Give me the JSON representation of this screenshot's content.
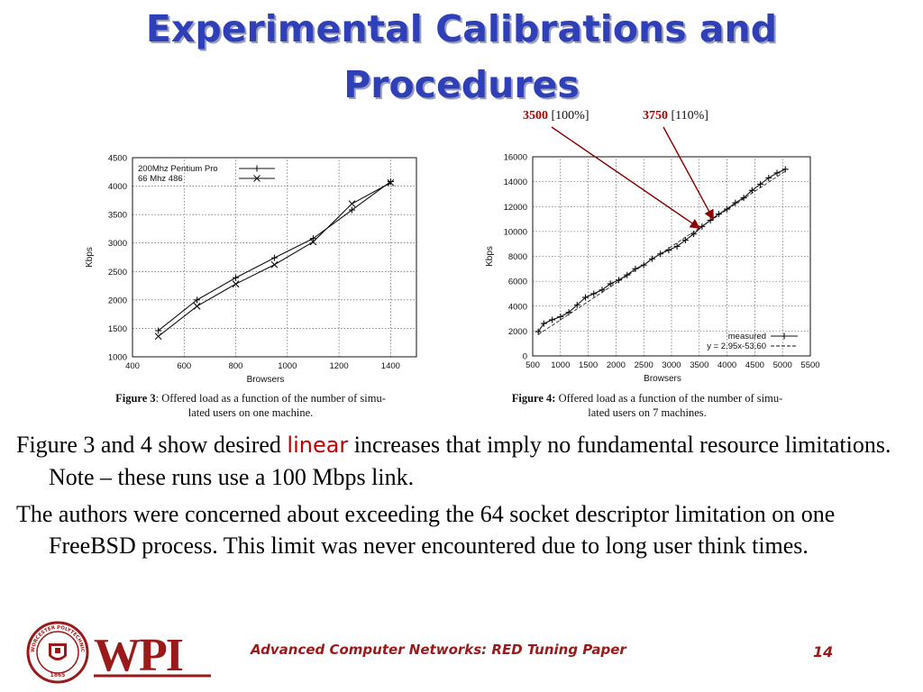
{
  "slide": {
    "title_line1": "Experimental Calibrations and",
    "title_line2": "Procedures",
    "title_color": "#2f3fb8"
  },
  "annotations": [
    {
      "value": "3500",
      "pct": "[100%]"
    },
    {
      "value": "3750",
      "pct": "[110%]"
    }
  ],
  "figures": [
    {
      "label": "Figure 3",
      "caption_rest": ": Offered load as a function of the number of simu-",
      "caption_line2": "lated users on one machine."
    },
    {
      "label": "Figure 4:",
      "caption_rest": " Offered load as a function of the number of simu-",
      "caption_line2": "lated users on 7 machines."
    }
  ],
  "body": {
    "p1_before": "Figure 3 and 4 show desired ",
    "p1_emph": "linear",
    "p1_after": " increases that imply no fundamental resource limitations. Note – these runs use a 100 Mbps link.",
    "p2": "The authors were concerned about exceeding the 64 socket descriptor limitation on one FreeBSD process.  This limit was never encountered due to long user think times."
  },
  "logo": {
    "text": "WPI",
    "seal_text": "WORCESTER POLYTECHNIC INSTITUTE",
    "year": "1865",
    "color": "#9a1a1a"
  },
  "footer": {
    "text": "Advanced Computer Networks:  RED Tuning Paper",
    "page": "14",
    "color": "#9a1a1a"
  },
  "chart_data": [
    {
      "type": "line",
      "xlabel": "Browsers",
      "ylabel": "Kbps",
      "xlim": [
        400,
        1500
      ],
      "ylim": [
        1000,
        4500
      ],
      "xticks": [
        400,
        600,
        800,
        1000,
        1200,
        1400
      ],
      "yticks": [
        1000,
        1500,
        2000,
        2500,
        3000,
        3500,
        4000,
        4500
      ],
      "grid": true,
      "legend": "top-left",
      "series": [
        {
          "name": "200Mhz Pentium Pro",
          "marker": "+",
          "x": [
            500,
            650,
            800,
            950,
            1100,
            1250,
            1400
          ],
          "y": [
            1460,
            2000,
            2390,
            2740,
            3080,
            3580,
            4080
          ]
        },
        {
          "name": "66 Mhz 486",
          "marker": "x",
          "x": [
            500,
            650,
            800,
            950,
            1100,
            1250,
            1400
          ],
          "y": [
            1360,
            1890,
            2280,
            2620,
            3020,
            3690,
            4060
          ]
        }
      ]
    },
    {
      "type": "line",
      "xlabel": "Browsers",
      "ylabel": "Kbps",
      "xlim": [
        500,
        5500
      ],
      "ylim": [
        0,
        16000
      ],
      "xticks": [
        500,
        1000,
        1500,
        2000,
        2500,
        3000,
        3500,
        4000,
        4500,
        5000,
        5500
      ],
      "yticks": [
        0,
        2000,
        4000,
        6000,
        8000,
        10000,
        12000,
        14000,
        16000
      ],
      "grid": true,
      "legend": "bottom-right",
      "series": [
        {
          "name": "measured",
          "marker": "+",
          "x": [
            600,
            700,
            850,
            1000,
            1150,
            1300,
            1450,
            1600,
            1750,
            1900,
            2050,
            2200,
            2350,
            2500,
            2650,
            2800,
            2950,
            3100,
            3250,
            3400,
            3550,
            3700,
            3850,
            4000,
            4150,
            4300,
            4450,
            4600,
            4750,
            4900,
            5050
          ],
          "y": [
            1950,
            2600,
            2900,
            3150,
            3500,
            4100,
            4700,
            5000,
            5300,
            5800,
            6100,
            6500,
            7000,
            7300,
            7800,
            8200,
            8500,
            8800,
            9300,
            9800,
            10400,
            10900,
            11400,
            11800,
            12300,
            12700,
            13300,
            13800,
            14300,
            14700,
            15000
          ]
        },
        {
          "name": "y = 2.95x-53.60",
          "style": "line",
          "slope": 2.95,
          "intercept": -53.6
        }
      ]
    }
  ]
}
